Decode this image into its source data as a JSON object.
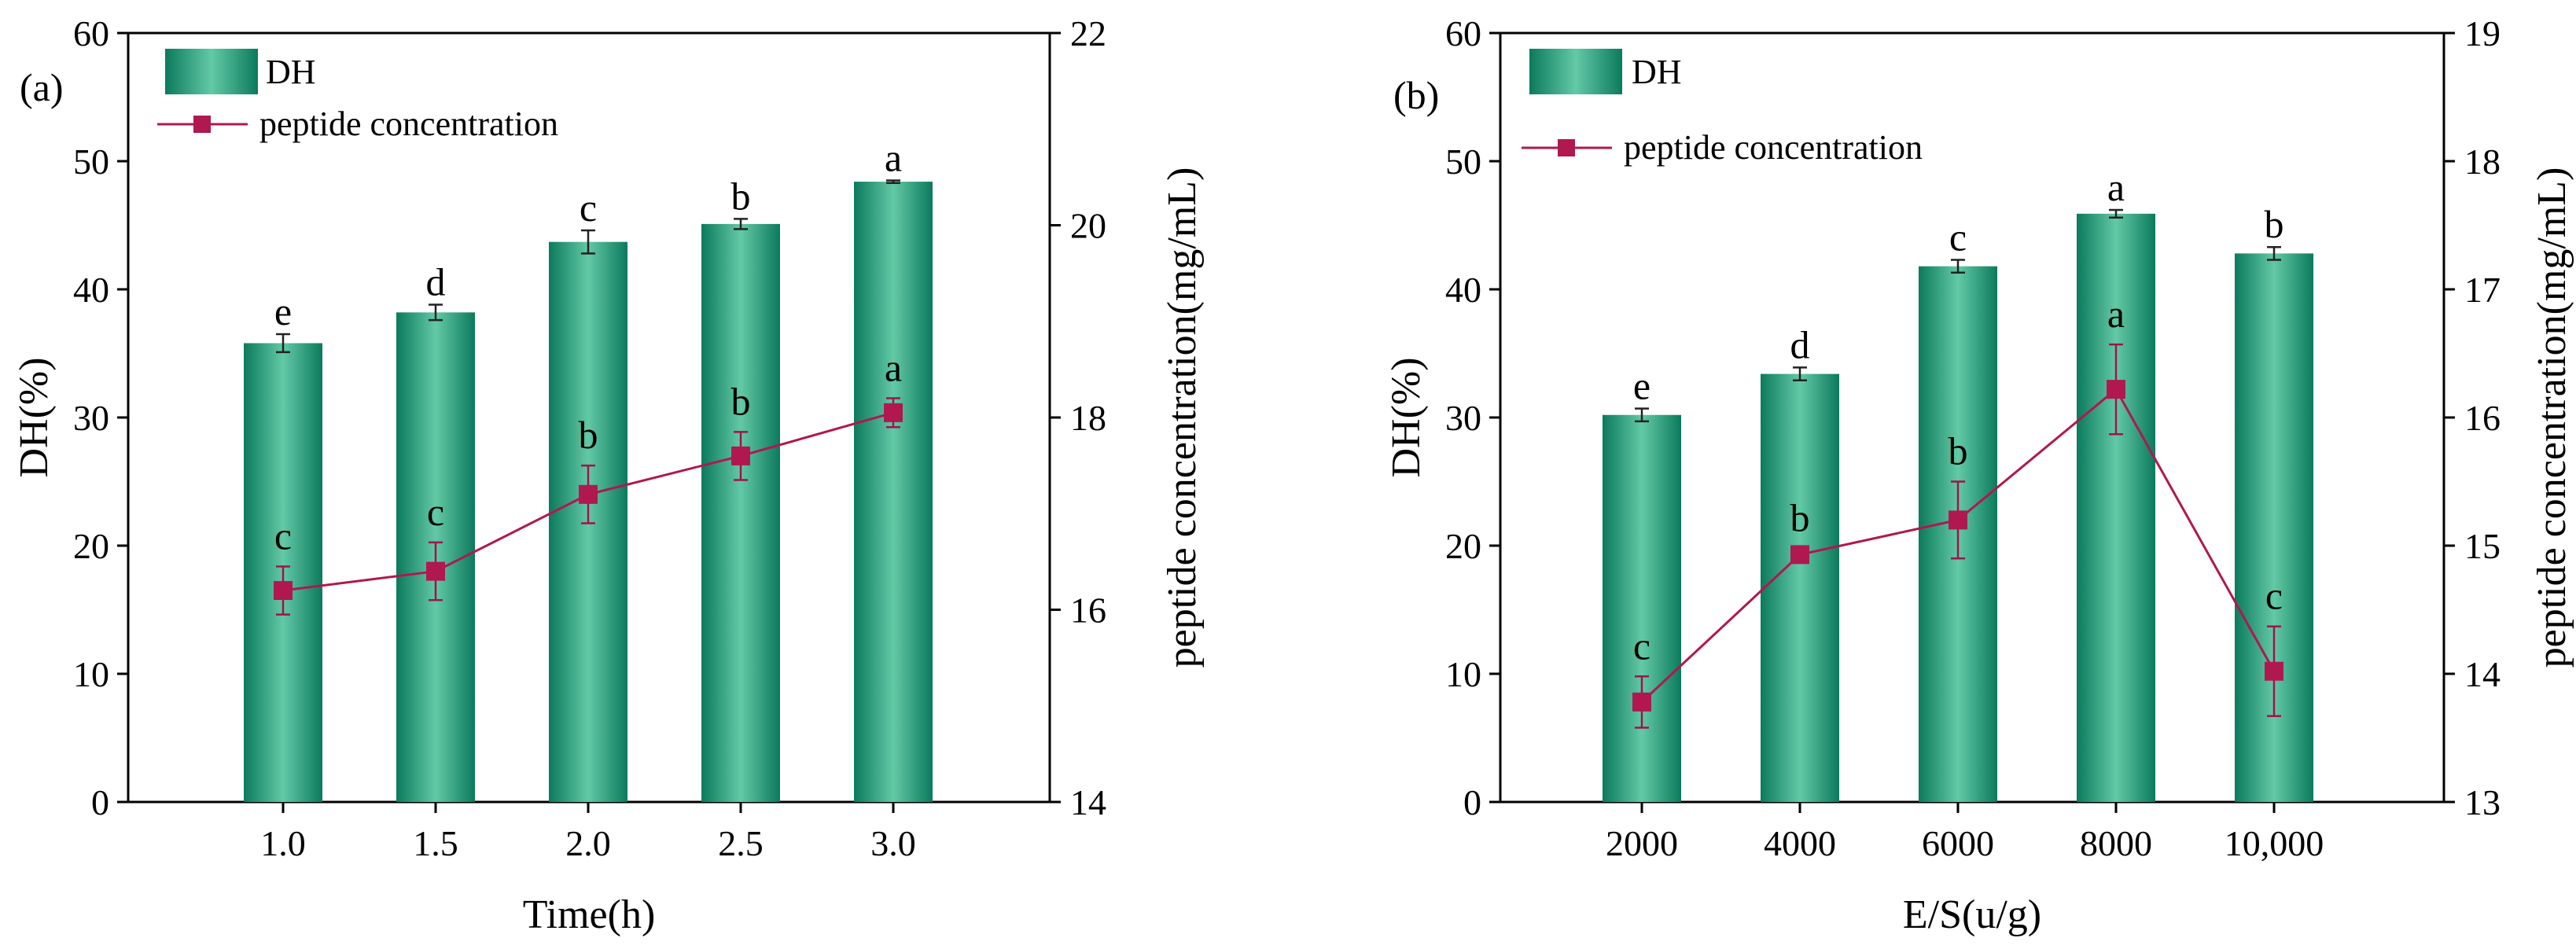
{
  "colors": {
    "bar_dark": "#0b7a5c",
    "bar_light": "#63c9a6",
    "line": "#b0184f",
    "axis": "#000000"
  },
  "chart_data": [
    {
      "type": "bar",
      "panel_label": "(a)",
      "xlabel": "Time(h)",
      "ylabel": "DH(%)",
      "y2label": "peptide concentration(mg/mL)",
      "categories": [
        "1.0",
        "1.5",
        "2.0",
        "2.5",
        "3.0"
      ],
      "ylim": [
        0,
        60
      ],
      "y_ticks": [
        0,
        10,
        20,
        30,
        40,
        50,
        60
      ],
      "y2lim": [
        14,
        22
      ],
      "y2_ticks": [
        14,
        16,
        18,
        20,
        22
      ],
      "legend": [
        "DH",
        "peptide concentration"
      ],
      "series": [
        {
          "name": "DH",
          "axis": "left",
          "kind": "bar",
          "values": [
            35.8,
            38.2,
            43.7,
            45.1,
            48.4
          ],
          "errors": [
            0.7,
            0.6,
            0.9,
            0.4,
            0.1
          ],
          "letters": [
            "e",
            "d",
            "c",
            "b",
            "a"
          ]
        },
        {
          "name": "peptide concentration",
          "axis": "right",
          "kind": "line",
          "values": [
            16.2,
            16.4,
            17.2,
            17.6,
            18.05
          ],
          "errors": [
            0.25,
            0.3,
            0.3,
            0.25,
            0.15
          ],
          "letters": [
            "c",
            "c",
            "b",
            "b",
            "a"
          ]
        }
      ]
    },
    {
      "type": "bar",
      "panel_label": "(b)",
      "xlabel": "E/S(u/g)",
      "ylabel": "DH(%)",
      "y2label": "peptide concentration(mg/mL)",
      "categories": [
        "2000",
        "4000",
        "6000",
        "8000",
        "10,000"
      ],
      "ylim": [
        0,
        60
      ],
      "y_ticks": [
        0,
        10,
        20,
        30,
        40,
        50,
        60
      ],
      "y2lim": [
        13,
        19
      ],
      "y2_ticks": [
        13,
        14,
        15,
        16,
        17,
        18,
        19
      ],
      "legend": [
        "DH",
        "peptide concentration"
      ],
      "series": [
        {
          "name": "DH",
          "axis": "left",
          "kind": "bar",
          "values": [
            30.2,
            33.4,
            41.8,
            45.9,
            42.8
          ],
          "errors": [
            0.5,
            0.5,
            0.5,
            0.3,
            0.5
          ],
          "letters": [
            "e",
            "d",
            "c",
            "a",
            "b"
          ]
        },
        {
          "name": "peptide concentration",
          "axis": "right",
          "kind": "line",
          "values": [
            13.78,
            14.93,
            15.2,
            16.22,
            14.02
          ],
          "errors": [
            0.2,
            0.05,
            0.3,
            0.35,
            0.35
          ],
          "letters": [
            "c",
            "b",
            "b",
            "a",
            "c"
          ]
        }
      ]
    }
  ]
}
